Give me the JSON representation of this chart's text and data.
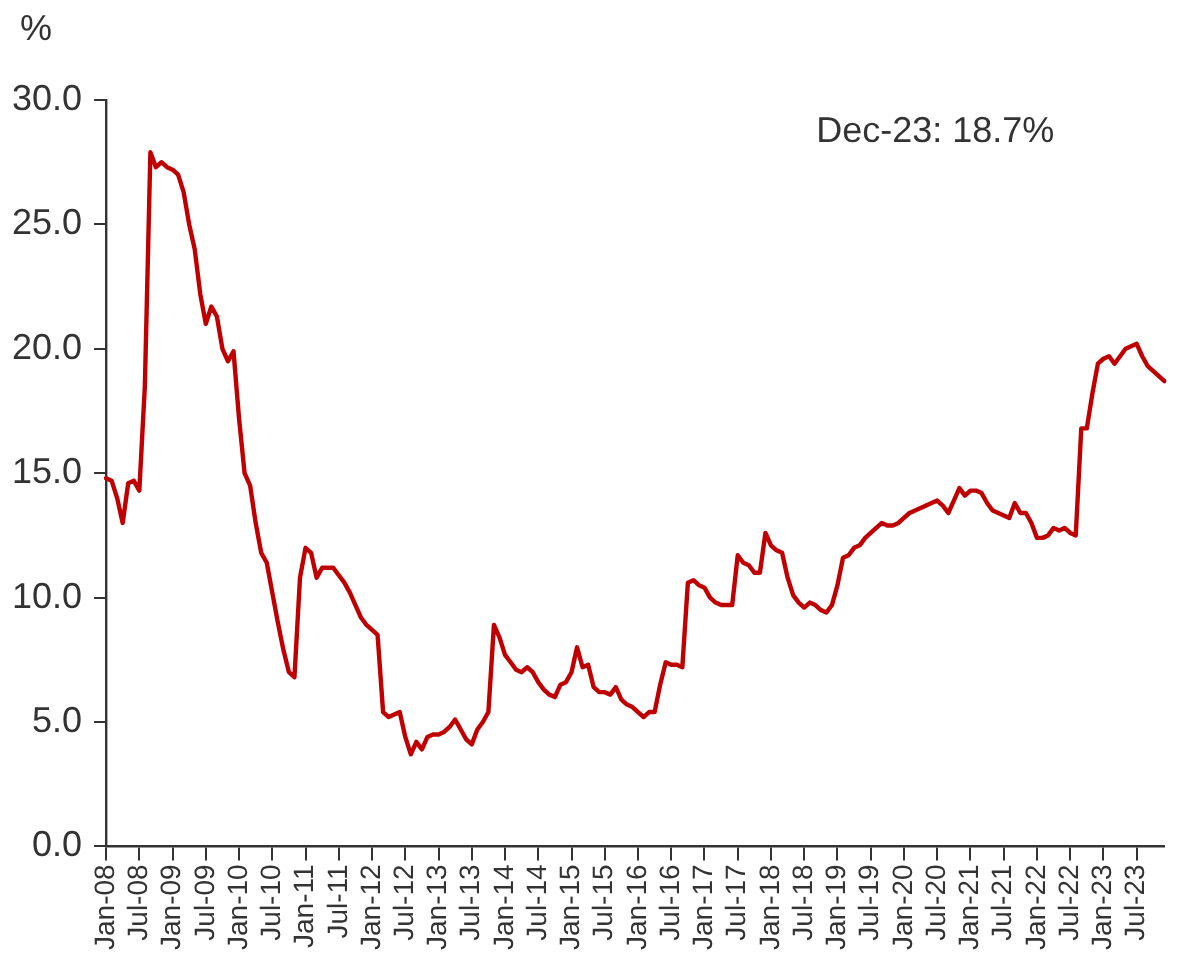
{
  "chart_data": {
    "type": "line",
    "ylabel": "%",
    "annotations": [
      "Dec-23: 18.7%"
    ],
    "categories": [
      "Jan-08",
      null,
      null,
      null,
      null,
      null,
      "Jul-08",
      null,
      null,
      null,
      null,
      null,
      "Jan-09",
      null,
      null,
      null,
      null,
      null,
      "Jul-09",
      null,
      null,
      null,
      null,
      null,
      "Jan-10",
      null,
      null,
      null,
      null,
      null,
      "Jul-10",
      null,
      null,
      null,
      null,
      null,
      "Jan-11",
      null,
      null,
      null,
      null,
      null,
      "Jul-11",
      null,
      null,
      null,
      null,
      null,
      "Jan-12",
      null,
      null,
      null,
      null,
      null,
      "Jul-12",
      null,
      null,
      null,
      null,
      null,
      "Jan-13",
      null,
      null,
      null,
      null,
      null,
      "Jul-13",
      null,
      null,
      null,
      null,
      null,
      "Jan-14",
      null,
      null,
      null,
      null,
      null,
      "Jul-14",
      null,
      null,
      null,
      null,
      null,
      "Jan-15",
      null,
      null,
      null,
      null,
      null,
      "Jul-15",
      null,
      null,
      null,
      null,
      null,
      "Jan-16",
      null,
      null,
      null,
      null,
      null,
      "Jul-16",
      null,
      null,
      null,
      null,
      null,
      "Jan-17",
      null,
      null,
      null,
      null,
      null,
      "Jul-17",
      null,
      null,
      null,
      null,
      null,
      "Jan-18",
      null,
      null,
      null,
      null,
      null,
      "Jul-18",
      null,
      null,
      null,
      null,
      null,
      "Jan-19",
      null,
      null,
      null,
      null,
      null,
      "Jul-19",
      null,
      null,
      null,
      null,
      null,
      "Jan-20",
      null,
      null,
      null,
      null,
      null,
      "Jul-20",
      null,
      null,
      null,
      null,
      null,
      "Jan-21",
      null,
      null,
      null,
      null,
      null,
      "Jul-21",
      null,
      null,
      null,
      null,
      null,
      "Jan-22",
      null,
      null,
      null,
      null,
      null,
      "Jul-22",
      null,
      null,
      null,
      null,
      null,
      "Jan-23",
      null,
      null,
      null,
      null,
      null,
      "Jul-23",
      null,
      null,
      null,
      null,
      null
    ],
    "series": [
      {
        "color": "#c00000",
        "values": [
          14.8,
          14.7,
          14.0,
          13.0,
          14.6,
          14.7,
          14.3,
          18.5,
          27.9,
          27.3,
          27.5,
          27.3,
          27.2,
          27.0,
          26.3,
          25.0,
          24.0,
          22.2,
          21.0,
          21.7,
          21.3,
          20.0,
          19.5,
          19.9,
          17.2,
          15.0,
          14.5,
          13.0,
          11.8,
          11.4,
          10.2,
          9.0,
          7.9,
          7.0,
          6.8,
          10.8,
          12.0,
          11.8,
          10.8,
          11.2,
          11.2,
          11.2,
          10.9,
          10.6,
          10.2,
          9.7,
          9.2,
          8.9,
          8.7,
          8.5,
          5.4,
          5.2,
          5.3,
          5.4,
          4.4,
          3.7,
          4.2,
          3.9,
          4.4,
          4.5,
          4.5,
          4.6,
          4.8,
          5.1,
          4.7,
          4.3,
          4.1,
          4.7,
          5.0,
          5.4,
          8.9,
          8.4,
          7.7,
          7.4,
          7.1,
          7.0,
          7.2,
          7.0,
          6.6,
          6.3,
          6.1,
          6.0,
          6.5,
          6.6,
          7.0,
          8.0,
          7.2,
          7.3,
          6.4,
          6.2,
          6.2,
          6.1,
          6.4,
          5.9,
          5.7,
          5.6,
          5.4,
          5.2,
          5.4,
          5.4,
          6.5,
          7.4,
          7.3,
          7.3,
          7.2,
          10.6,
          10.7,
          10.5,
          10.4,
          10.0,
          9.8,
          9.7,
          9.7,
          9.7,
          11.7,
          11.4,
          11.3,
          11.0,
          11.0,
          12.6,
          12.1,
          11.9,
          11.8,
          10.8,
          10.1,
          9.8,
          9.6,
          9.8,
          9.7,
          9.5,
          9.4,
          9.7,
          10.5,
          11.6,
          11.7,
          12.0,
          12.1,
          12.4,
          12.6,
          12.8,
          13.0,
          12.9,
          12.9,
          13.0,
          13.2,
          13.4,
          13.5,
          13.6,
          13.7,
          13.8,
          13.9,
          13.7,
          13.4,
          13.9,
          14.4,
          14.1,
          14.3,
          14.3,
          14.2,
          13.8,
          13.5,
          13.4,
          13.3,
          13.2,
          13.8,
          13.4,
          13.4,
          13.0,
          12.4,
          12.4,
          12.5,
          12.8,
          12.7,
          12.8,
          12.6,
          12.5,
          16.8,
          16.8,
          18.2,
          19.4,
          19.6,
          19.7,
          19.4,
          19.7,
          20.0,
          20.1,
          20.2,
          19.7,
          19.3,
          19.1,
          18.9,
          18.7
        ]
      }
    ],
    "ylim": [
      0,
      30
    ],
    "yticks": [
      {
        "value": 0,
        "label": "0.0"
      },
      {
        "value": 5,
        "label": "5.0"
      },
      {
        "value": 10,
        "label": "10.0"
      },
      {
        "value": 15,
        "label": "15.0"
      },
      {
        "value": 20,
        "label": "20.0"
      },
      {
        "value": 25,
        "label": "25.0"
      },
      {
        "value": 30,
        "label": "30.0"
      }
    ],
    "grid": false,
    "legend": false,
    "marker": "none",
    "line_style": "solid"
  }
}
